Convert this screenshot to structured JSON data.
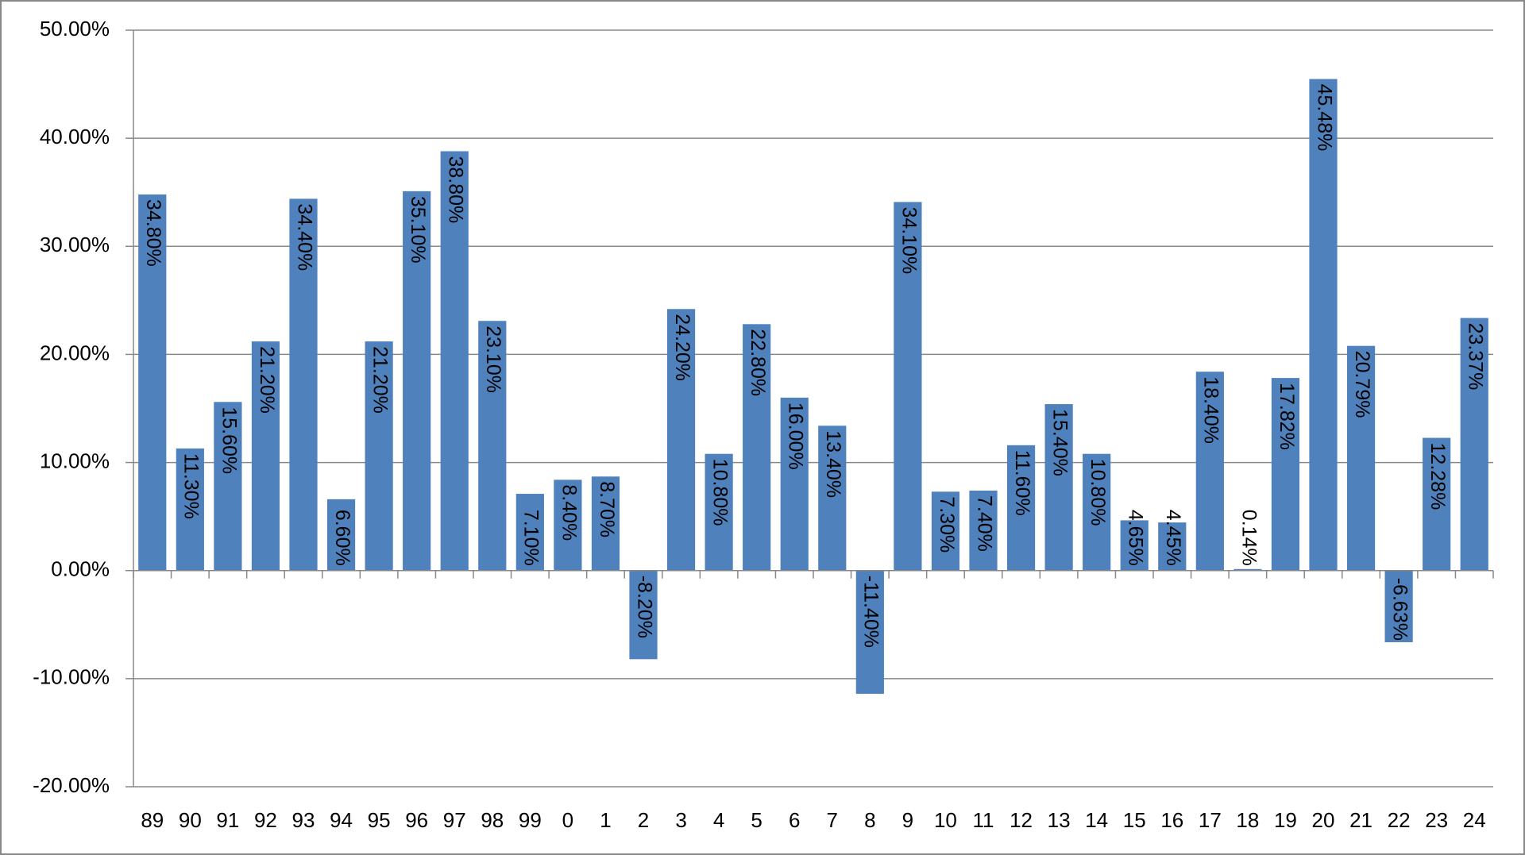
{
  "chart_data": {
    "type": "bar",
    "categories": [
      "89",
      "90",
      "91",
      "92",
      "93",
      "94",
      "95",
      "96",
      "97",
      "98",
      "99",
      "0",
      "1",
      "2",
      "3",
      "4",
      "5",
      "6",
      "7",
      "8",
      "9",
      "10",
      "11",
      "12",
      "13",
      "14",
      "15",
      "16",
      "17",
      "18",
      "19",
      "20",
      "21",
      "22",
      "23",
      "24"
    ],
    "values": [
      34.8,
      11.3,
      15.6,
      21.2,
      34.4,
      6.6,
      21.2,
      35.1,
      38.8,
      23.1,
      7.1,
      8.4,
      8.7,
      -8.2,
      24.2,
      10.8,
      22.8,
      16.0,
      13.4,
      -11.4,
      34.1,
      7.3,
      7.4,
      11.6,
      15.4,
      10.8,
      4.65,
      4.45,
      18.4,
      0.14,
      17.82,
      45.48,
      20.79,
      -6.63,
      12.28,
      23.37
    ],
    "value_labels": [
      "34.80%",
      "11.30%",
      "15.60%",
      "21.20%",
      "34.40%",
      "6.60%",
      "21.20%",
      "35.10%",
      "38.80%",
      "23.10%",
      "7.10%",
      "8.40%",
      "8.70%",
      "-8.20%",
      "24.20%",
      "10.80%",
      "22.80%",
      "16.00%",
      "13.40%",
      "-11.40%",
      "34.10%",
      "7.30%",
      "7.40%",
      "11.60%",
      "15.40%",
      "10.80%",
      "4.65%",
      "4.45%",
      "18.40%",
      "0.14%",
      "17.82%",
      "45.48%",
      "20.79%",
      "-6.63%",
      "12.28%",
      "23.37%"
    ],
    "color": "#4f81bd",
    "ylim": [
      -20,
      50
    ],
    "yticks": [
      {
        "value": -20,
        "label": "-20.00%"
      },
      {
        "value": -10,
        "label": "-10.00%"
      },
      {
        "value": 0,
        "label": "0.00%"
      },
      {
        "value": 10,
        "label": "10.00%"
      },
      {
        "value": 20,
        "label": "20.00%"
      },
      {
        "value": 30,
        "label": "30.00%"
      },
      {
        "value": 40,
        "label": "40.00%"
      },
      {
        "value": 50,
        "label": "50.00%"
      }
    ],
    "grid": true
  }
}
